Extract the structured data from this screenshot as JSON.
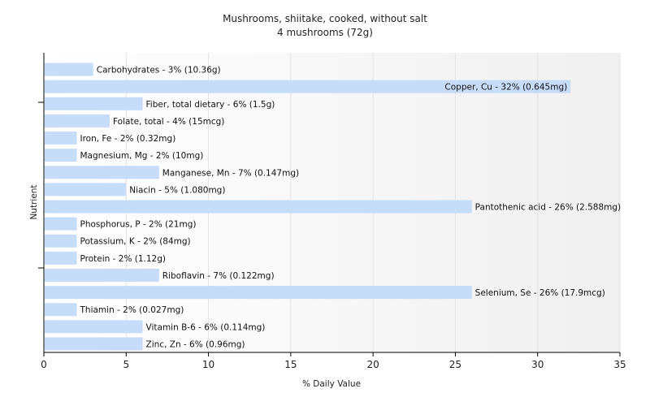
{
  "chart_data": {
    "type": "bar",
    "orientation": "horizontal",
    "title": "Mushrooms, shiitake, cooked, without salt",
    "subtitle": "4 mushrooms (72g)",
    "xlabel": "% Daily Value",
    "ylabel": "Nutrient",
    "xlim": [
      0,
      35
    ],
    "xticks": [
      0,
      5,
      10,
      15,
      20,
      25,
      30,
      35
    ],
    "grid": true,
    "colors": {
      "bar": "#c6dcf9",
      "grid": "#e3e3e3",
      "axis": "#000000",
      "plot_bg_start": "#ffffff",
      "plot_bg_end": "#f0f0f0"
    },
    "categories": [
      "Carbohydrates",
      "Copper, Cu",
      "Fiber, total dietary",
      "Folate, total",
      "Iron, Fe",
      "Magnesium, Mg",
      "Manganese, Mn",
      "Niacin",
      "Pantothenic acid",
      "Phosphorus, P",
      "Potassium, K",
      "Protein",
      "Riboflavin",
      "Selenium, Se",
      "Thiamin",
      "Vitamin B-6",
      "Zinc, Zn"
    ],
    "values": [
      3,
      32,
      6,
      4,
      2,
      2,
      7,
      5,
      26,
      2,
      2,
      2,
      7,
      26,
      2,
      6,
      6
    ],
    "labels": [
      "Carbohydrates - 3% (10.36g)",
      "Copper, Cu - 32% (0.645mg)",
      "Fiber, total dietary - 6% (1.5g)",
      "Folate, total - 4% (15mcg)",
      "Iron, Fe - 2% (0.32mg)",
      "Magnesium, Mg - 2% (10mg)",
      "Manganese, Mn - 7% (0.147mg)",
      "Niacin - 5% (1.080mg)",
      "Pantothenic acid - 26% (2.588mg)",
      "Phosphorus, P - 2% (21mg)",
      "Potassium, K - 2% (84mg)",
      "Protein - 2% (1.12g)",
      "Riboflavin - 7% (0.122mg)",
      "Selenium, Se - 26% (17.9mcg)",
      "Thiamin - 2% (0.027mg)",
      "Vitamin B-6 - 6% (0.114mg)",
      "Zinc, Zn - 6% (0.96mg)"
    ]
  }
}
